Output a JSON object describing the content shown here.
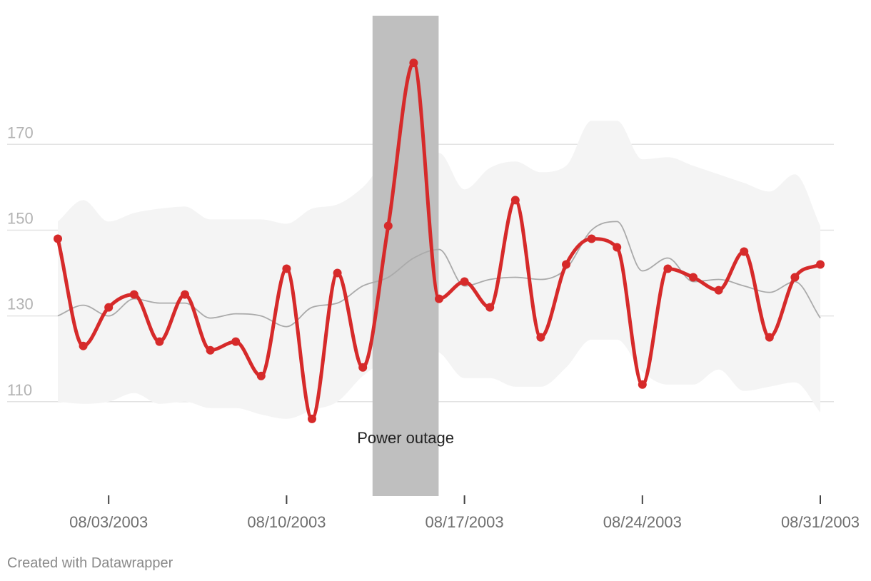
{
  "chart_data": {
    "type": "line",
    "x": [
      "08/01/2003",
      "08/02/2003",
      "08/03/2003",
      "08/04/2003",
      "08/05/2003",
      "08/06/2003",
      "08/07/2003",
      "08/08/2003",
      "08/09/2003",
      "08/10/2003",
      "08/11/2003",
      "08/12/2003",
      "08/13/2003",
      "08/14/2003",
      "08/15/2003",
      "08/16/2003",
      "08/17/2003",
      "08/18/2003",
      "08/19/2003",
      "08/20/2003",
      "08/21/2003",
      "08/22/2003",
      "08/23/2003",
      "08/24/2003",
      "08/25/2003",
      "08/26/2003",
      "08/27/2003",
      "08/28/2003",
      "08/29/2003",
      "08/30/2003",
      "08/31/2003"
    ],
    "series": [
      {
        "values": [
          148,
          123,
          132,
          135,
          124,
          135,
          122,
          124,
          116,
          141,
          106,
          140,
          118,
          151,
          189,
          134,
          138,
          132,
          157,
          125,
          142,
          148,
          146,
          114,
          141,
          139,
          136,
          145,
          125,
          139,
          142
        ],
        "color": "#d62a2a"
      },
      {
        "values": [
          130,
          132.5,
          130,
          134,
          133,
          133,
          129.5,
          130.5,
          130,
          127.5,
          132,
          133,
          137,
          139,
          143.5,
          145.5,
          137,
          138.5,
          139,
          138.5,
          141,
          150,
          152,
          140.5,
          143.5,
          138,
          138.5,
          137,
          135.5,
          138,
          129.5
        ],
        "color": "#aaaaaa"
      }
    ],
    "band": {
      "upper": [
        152,
        157,
        152,
        154,
        155,
        155.5,
        152.5,
        152.5,
        152.5,
        151.5,
        155,
        156,
        160,
        166.5,
        167.5,
        168,
        159.5,
        164.5,
        166,
        163.5,
        165,
        175.5,
        175.5,
        166.5,
        167,
        165,
        163,
        161,
        159,
        163,
        151
      ],
      "lower": [
        110,
        109.5,
        110,
        112,
        109.5,
        110,
        108.5,
        108.5,
        107,
        106,
        108,
        110,
        116,
        120,
        122.5,
        121.5,
        115.5,
        115.5,
        113.5,
        113.5,
        118,
        124.5,
        124.5,
        117,
        114,
        114,
        117.5,
        112.5,
        113.5,
        114.5,
        107.5
      ],
      "color": "#f4f4f4"
    },
    "ylim": [
      88,
      200
    ],
    "yticks": [
      "110",
      "130",
      "150",
      "170"
    ],
    "ytick_values": [
      110,
      130,
      150,
      170
    ],
    "xtick_labels": [
      "08/03/2003",
      "08/10/2003",
      "08/17/2003",
      "08/24/2003",
      "08/31/2003"
    ],
    "xtick_indices": [
      2,
      9,
      16,
      23,
      30
    ],
    "highlight": {
      "from": "08/14/2003",
      "to": "08/15/2003",
      "label": "Power outage",
      "color": "#bfbfbf"
    },
    "grid": true
  },
  "credit": "Created with Datawrapper"
}
